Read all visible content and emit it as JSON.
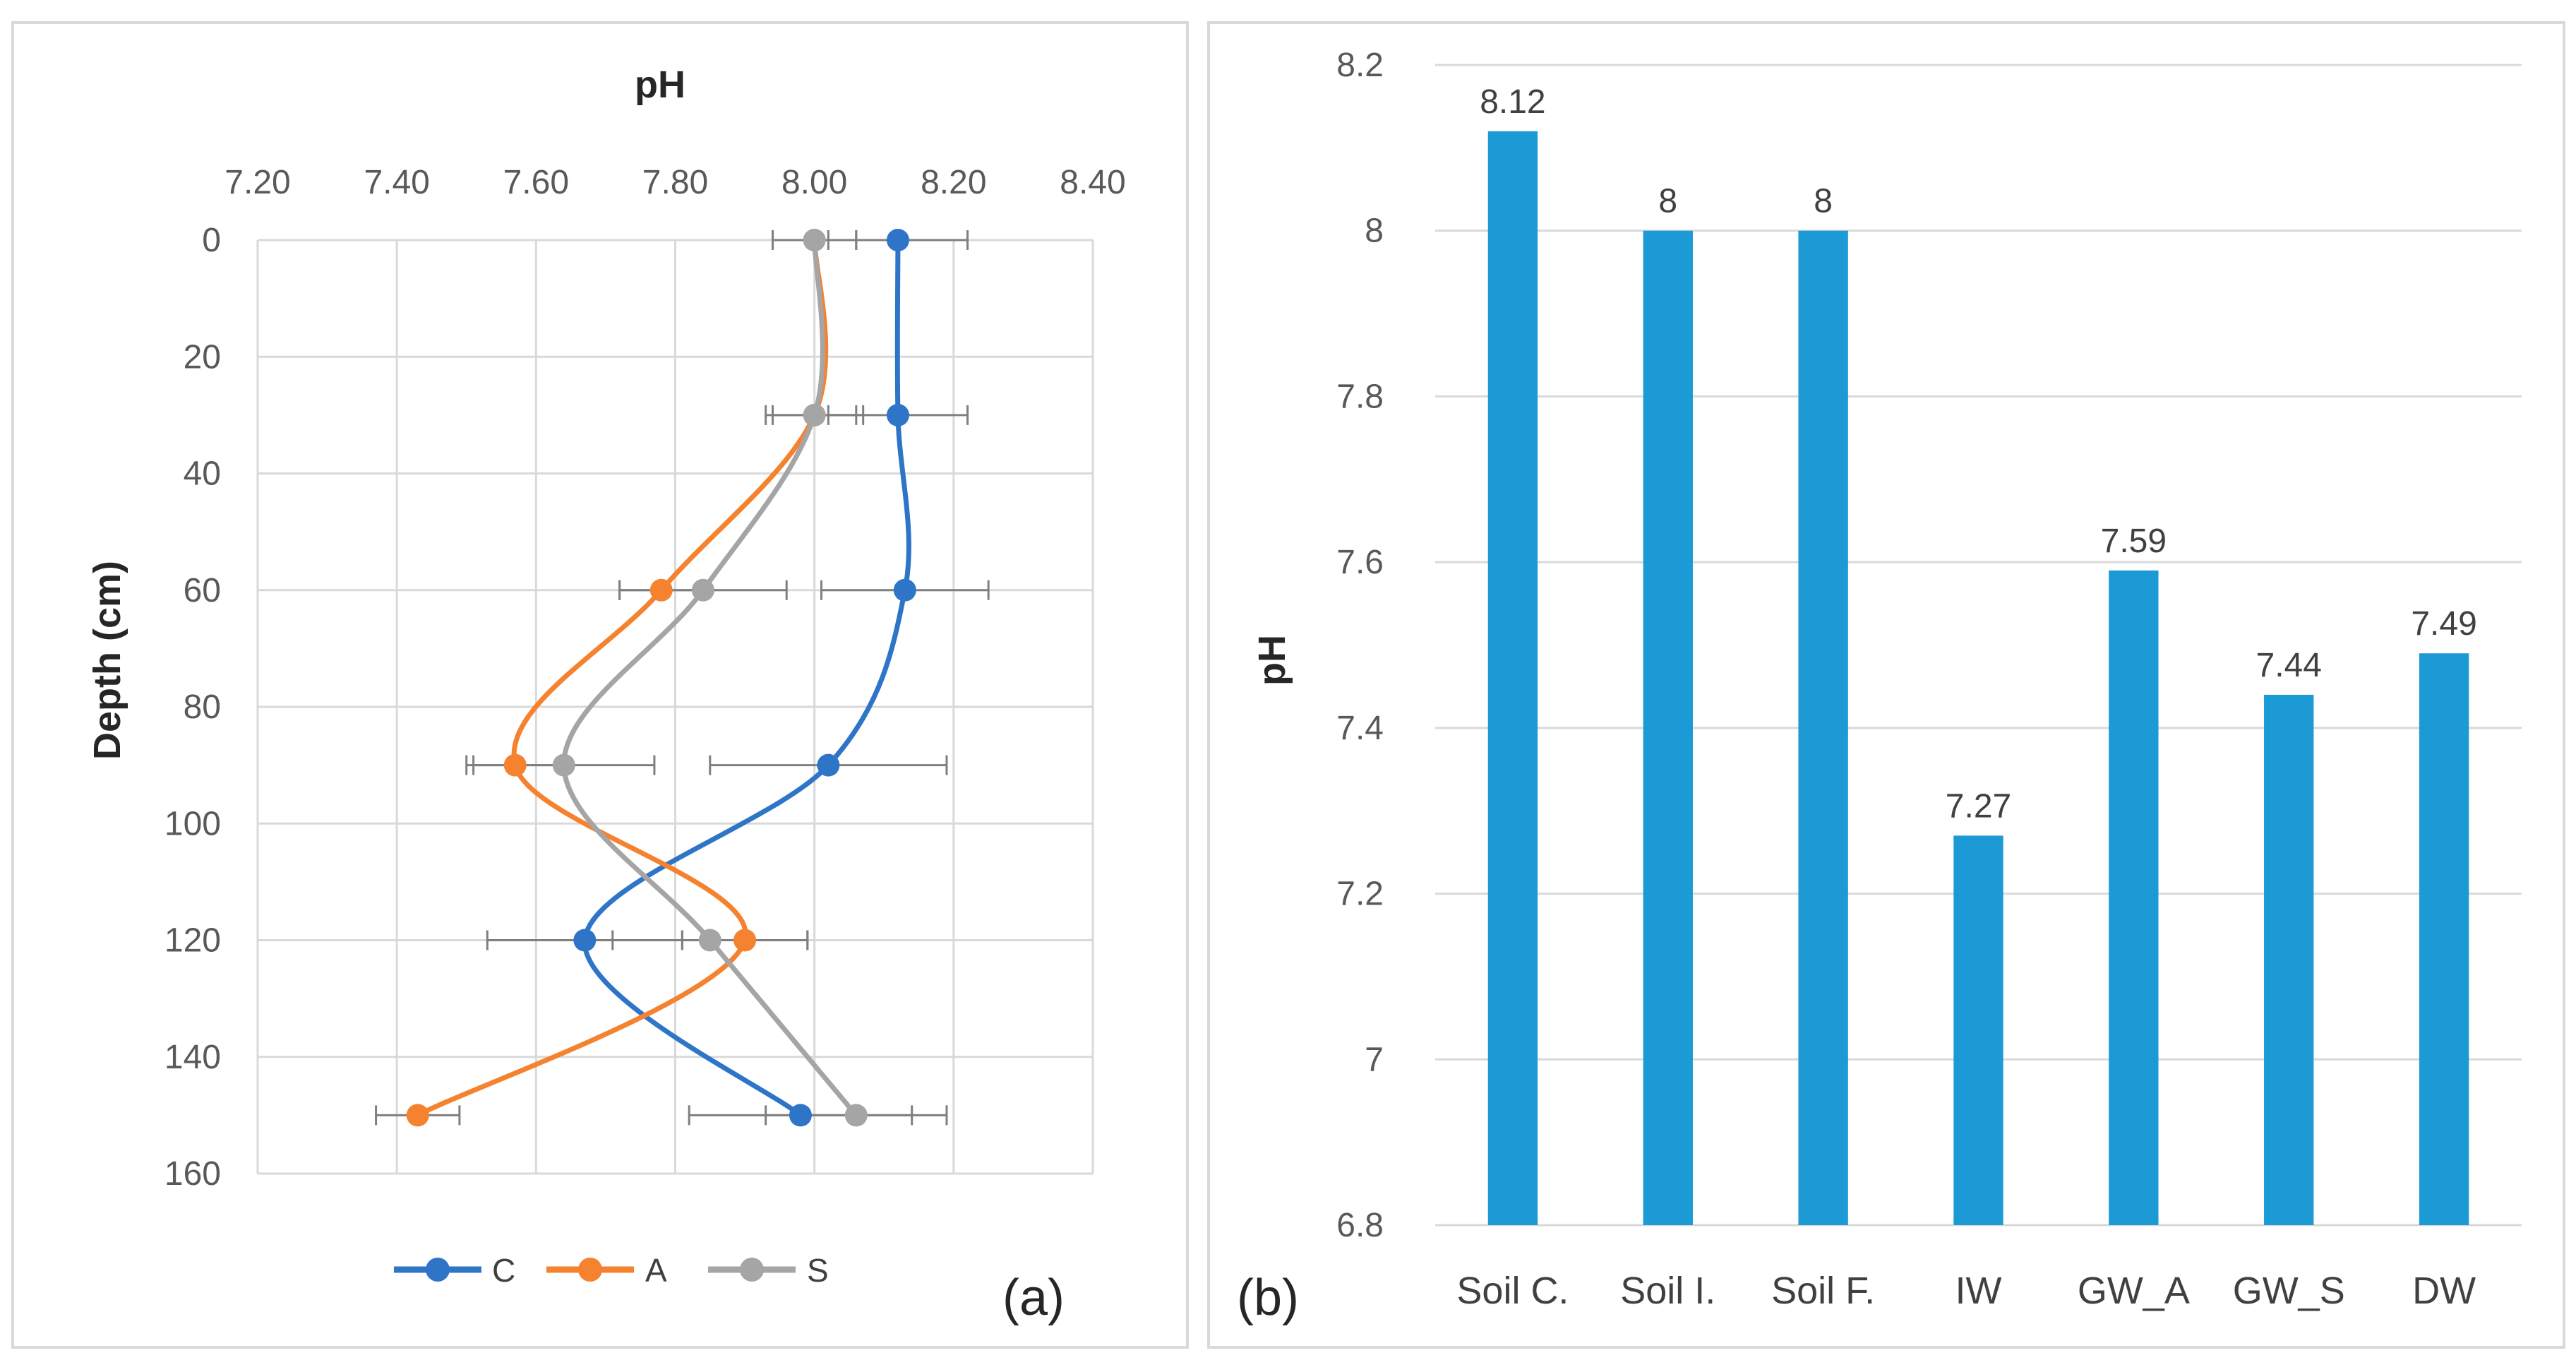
{
  "chart_data": [
    {
      "panel_label": "(a)",
      "type": "line",
      "title": "pH",
      "xlabel": "pH",
      "ylabel": "Depth (cm)",
      "xlim": [
        7.2,
        8.4
      ],
      "ylim": [
        0,
        160
      ],
      "xticks": [
        "7.20",
        "7.40",
        "7.60",
        "7.80",
        "8.00",
        "8.20",
        "8.40"
      ],
      "yticks": [
        "0",
        "20",
        "40",
        "60",
        "80",
        "100",
        "120",
        "140",
        "160"
      ],
      "grid": true,
      "legend_position": "bottom",
      "series": [
        {
          "name": "C",
          "color": "#2e75c8",
          "points": [
            {
              "ph": 8.12,
              "depth": 0,
              "err": 0.1
            },
            {
              "ph": 8.12,
              "depth": 30,
              "err": 0.1
            },
            {
              "ph": 8.13,
              "depth": 60,
              "err": 0.12
            },
            {
              "ph": 8.02,
              "depth": 90,
              "err": 0.17
            },
            {
              "ph": 7.67,
              "depth": 120,
              "err": 0.14
            },
            {
              "ph": 7.98,
              "depth": 150,
              "err": 0.16
            }
          ]
        },
        {
          "name": "A",
          "color": "#f5822f",
          "points": [
            {
              "ph": 8.0,
              "depth": 0,
              "err": 0.06
            },
            {
              "ph": 8.0,
              "depth": 30,
              "err": 0.06
            },
            {
              "ph": 7.78,
              "depth": 60,
              "err": 0.06
            },
            {
              "ph": 7.57,
              "depth": 90,
              "err": 0.07
            },
            {
              "ph": 7.9,
              "depth": 120,
              "err": 0.09
            },
            {
              "ph": 7.43,
              "depth": 150,
              "err": 0.06
            }
          ]
        },
        {
          "name": "S",
          "color": "#a5a5a5",
          "points": [
            {
              "ph": 8.0,
              "depth": 0,
              "err": 0.06
            },
            {
              "ph": 8.0,
              "depth": 30,
              "err": 0.07
            },
            {
              "ph": 7.84,
              "depth": 60,
              "err": 0.12
            },
            {
              "ph": 7.64,
              "depth": 90,
              "err": 0.13
            },
            {
              "ph": 7.85,
              "depth": 120,
              "err": 0.14
            },
            {
              "ph": 8.06,
              "depth": 150,
              "err": 0.13
            }
          ]
        }
      ]
    },
    {
      "panel_label": "(b)",
      "type": "bar",
      "title": "",
      "xlabel": "",
      "ylabel": "pH",
      "ylim": [
        6.8,
        8.2
      ],
      "yticks": [
        "6.8",
        "7",
        "7.2",
        "7.4",
        "7.6",
        "7.8",
        "8",
        "8.2"
      ],
      "grid": true,
      "color": "#1b9ad6",
      "categories": [
        "Soil C.",
        "Soil I.",
        "Soil F.",
        "IW",
        "GW_A",
        "GW_S",
        "DW"
      ],
      "values": [
        8.12,
        8,
        8,
        7.27,
        7.59,
        7.44,
        7.49
      ],
      "data_labels": [
        "8.12",
        "8",
        "8",
        "7.27",
        "7.59",
        "7.44",
        "7.49"
      ]
    }
  ]
}
